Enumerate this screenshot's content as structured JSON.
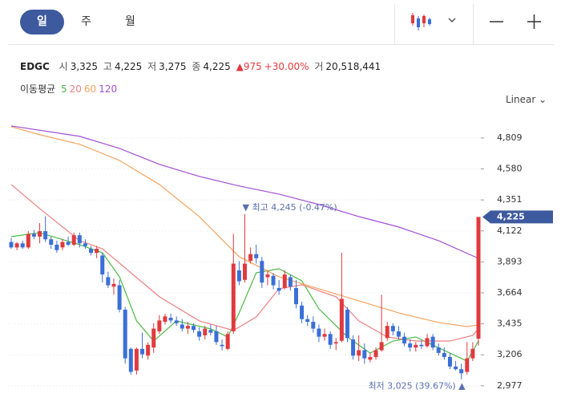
{
  "header": {
    "tabs": [
      "일",
      "주",
      "월"
    ],
    "scale_mode": "Linear"
  },
  "quote": {
    "ticker": "EDGC",
    "items": [
      {
        "label": "시",
        "value": "3,325"
      },
      {
        "label": "고",
        "value": "4,225"
      },
      {
        "label": "저",
        "value": "3,275"
      },
      {
        "label": "종",
        "value": "4,225"
      }
    ],
    "change": "▲975",
    "change_pct": "+30.00%",
    "volume_label": "거",
    "volume": "20,518,441"
  },
  "chart_data": {
    "type": "candlestick",
    "ma_label": "이동평균",
    "up_color": "#e03a3e",
    "down_color": "#3a6fd8",
    "xlim": [
      0,
      82
    ],
    "ylim": [
      2893,
      4939
    ],
    "yticks": [
      {
        "value": 4809,
        "label": "4,809"
      },
      {
        "value": 4580,
        "label": "4,580"
      },
      {
        "value": 4351,
        "label": "4,351"
      },
      {
        "value": 4122,
        "label": "4,122"
      },
      {
        "value": 3893,
        "label": "3,893"
      },
      {
        "value": 3664,
        "label": "3,664"
      },
      {
        "value": 3435,
        "label": "3,435"
      },
      {
        "value": 3206,
        "label": "3,206"
      },
      {
        "value": 2977,
        "label": "2,977"
      }
    ],
    "grid": true,
    "open": [
      4040,
      4000,
      4030,
      4000,
      4100,
      4080,
      4120,
      4060,
      4020,
      4000,
      4040,
      4020,
      4090,
      4030,
      3990,
      3960,
      3940,
      3780,
      3710,
      3720,
      3540,
      3250,
      3090,
      3250,
      3200,
      3260,
      3380,
      3450,
      3480,
      3460,
      3430,
      3400,
      3420,
      3380,
      3350,
      3390,
      3380,
      3280,
      3250,
      3380,
      3830,
      3760,
      3900,
      3950,
      3900,
      3780,
      3790,
      3700,
      3700,
      3780,
      3700,
      3570,
      3470,
      3450,
      3400,
      3340,
      3360,
      3290,
      3310,
      3540,
      3320,
      3200,
      3240,
      3170,
      3190,
      3240,
      3330,
      3420,
      3380,
      3340,
      3290,
      3260,
      3280,
      3270,
      3340,
      3260,
      3220,
      3190,
      3120,
      3100,
      3080,
      3180,
      3325
    ],
    "high": [
      4070,
      4040,
      4050,
      4120,
      4130,
      4180,
      4230,
      4080,
      4050,
      4060,
      4080,
      4110,
      4110,
      4060,
      4010,
      4010,
      3960,
      3820,
      3770,
      3760,
      3560,
      3260,
      3260,
      3370,
      3300,
      3440,
      3500,
      3510,
      3510,
      3490,
      3470,
      3450,
      3440,
      3410,
      3420,
      3430,
      3420,
      3320,
      3380,
      4100,
      3900,
      4245,
      4000,
      4020,
      3930,
      3830,
      3810,
      3760,
      3830,
      3800,
      3760,
      3600,
      3500,
      3490,
      3430,
      3400,
      3380,
      3330,
      3960,
      3560,
      3350,
      3350,
      3290,
      3220,
      3260,
      3650,
      3450,
      3440,
      3420,
      3370,
      3320,
      3300,
      3310,
      3360,
      3360,
      3290,
      3260,
      3220,
      3160,
      3140,
      3300,
      3300,
      4225
    ],
    "low": [
      3990,
      3980,
      3990,
      3990,
      4060,
      4030,
      4040,
      3990,
      3960,
      3980,
      4010,
      4010,
      4000,
      3990,
      3940,
      3920,
      3740,
      3700,
      3650,
      3520,
      3140,
      3060,
      3060,
      3180,
      3170,
      3220,
      3360,
      3430,
      3440,
      3420,
      3380,
      3360,
      3370,
      3310,
      3320,
      3350,
      3280,
      3240,
      3240,
      3360,
      3720,
      3740,
      3880,
      3880,
      3700,
      3720,
      3690,
      3650,
      3690,
      3680,
      3550,
      3440,
      3420,
      3370,
      3300,
      3310,
      3250,
      3240,
      3300,
      3300,
      3170,
      3160,
      3140,
      3150,
      3170,
      3230,
      3310,
      3350,
      3320,
      3270,
      3230,
      3230,
      3250,
      3260,
      3240,
      3200,
      3170,
      3100,
      3090,
      3025,
      3060,
      3160,
      3275
    ],
    "close": [
      4000,
      4030,
      4000,
      4100,
      4080,
      4120,
      4060,
      4020,
      3980,
      4040,
      4020,
      4090,
      4030,
      4010,
      3960,
      3990,
      3800,
      3720,
      3730,
      3540,
      3180,
      3080,
      3250,
      3210,
      3280,
      3400,
      3460,
      3490,
      3460,
      3440,
      3400,
      3420,
      3390,
      3340,
      3400,
      3370,
      3300,
      3270,
      3360,
      3880,
      3750,
      3880,
      3950,
      3920,
      3740,
      3800,
      3720,
      3680,
      3800,
      3710,
      3580,
      3470,
      3450,
      3400,
      3340,
      3360,
      3280,
      3300,
      3620,
      3330,
      3200,
      3240,
      3180,
      3190,
      3240,
      3300,
      3420,
      3380,
      3340,
      3290,
      3260,
      3280,
      3270,
      3330,
      3260,
      3220,
      3190,
      3120,
      3100,
      3070,
      3180,
      3250,
      4225
    ],
    "series": [
      {
        "name": "5",
        "color": "#4cb944",
        "x": [
          0,
          5,
          12,
          16,
          19,
          22,
          25,
          29,
          35,
          38,
          40,
          43,
          47,
          51,
          54,
          59,
          63,
          67,
          71,
          77,
          80,
          82
        ],
        "values": [
          4080,
          4109,
          4020,
          3961,
          3783,
          3457,
          3308,
          3457,
          3398,
          3338,
          3516,
          3813,
          3842,
          3753,
          3546,
          3338,
          3219,
          3308,
          3338,
          3219,
          3160,
          3308
        ]
      },
      {
        "name": "20",
        "color": "#ef7f7f",
        "x": [
          0,
          5,
          12,
          16,
          21,
          26,
          33,
          39,
          43,
          47,
          51,
          57,
          61,
          66,
          71,
          77,
          81,
          82
        ],
        "values": [
          4465,
          4287,
          4050,
          3990,
          3813,
          3635,
          3457,
          3386,
          3486,
          3694,
          3724,
          3635,
          3457,
          3338,
          3308,
          3308,
          3350,
          3398
        ]
      },
      {
        "name": "60",
        "color": "#f4a460",
        "x": [
          0,
          5,
          12,
          19,
          26,
          33,
          40,
          47,
          54,
          61,
          68,
          75,
          80,
          82
        ],
        "values": [
          4892,
          4833,
          4762,
          4643,
          4465,
          4228,
          3931,
          3783,
          3694,
          3605,
          3516,
          3445,
          3415,
          3427
        ]
      },
      {
        "name": "120",
        "color": "#a34fd6",
        "x": [
          0,
          12,
          19,
          26,
          33,
          40,
          47,
          54,
          61,
          68,
          75,
          82
        ],
        "values": [
          4898,
          4821,
          4732,
          4614,
          4525,
          4454,
          4394,
          4317,
          4228,
          4151,
          4050,
          3919
        ]
      }
    ],
    "high_annotation": "▼ 최고 4,245 (-0.47%)",
    "low_annotation": "최저 3,025 (39.67%) ▲",
    "last_price_label": "4,225",
    "tag_color": "#3d5a9e"
  }
}
